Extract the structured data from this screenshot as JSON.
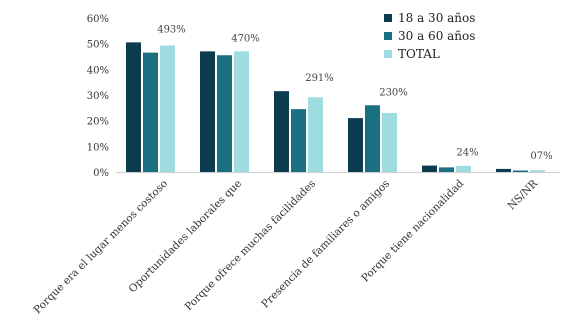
{
  "chart_data": {
    "type": "bar",
    "title": "",
    "xlabel": "",
    "ylabel": "",
    "ylim": [
      0,
      60
    ],
    "yticks": [
      "0%",
      "10%",
      "20%",
      "30%",
      "40%",
      "50%",
      "60%"
    ],
    "categories": [
      "Porque era el lugar menos costoso",
      "Oportunidades laborales que",
      "Porque ofrece muchas facilidades",
      "Presencia de familiares o amigos",
      "Porque tiene nacionalidad",
      "NS/NR"
    ],
    "series": [
      {
        "name": "18 a 30 años",
        "color": "#0d3b4f",
        "values": [
          50.5,
          47.0,
          31.5,
          21.0,
          2.5,
          1.2
        ]
      },
      {
        "name": "30 a 60 años",
        "color": "#1a6f80",
        "values": [
          46.5,
          45.5,
          24.5,
          26.0,
          1.8,
          0.3
        ]
      },
      {
        "name": "TOTAL",
        "color": "#9fdcdf",
        "values": [
          49.3,
          47.0,
          29.1,
          23.0,
          2.4,
          0.7
        ]
      }
    ],
    "data_labels": [
      "493%",
      "470%",
      "291%",
      "230%",
      "24%",
      "07%"
    ],
    "grid": false,
    "legend_position": "top-right"
  }
}
